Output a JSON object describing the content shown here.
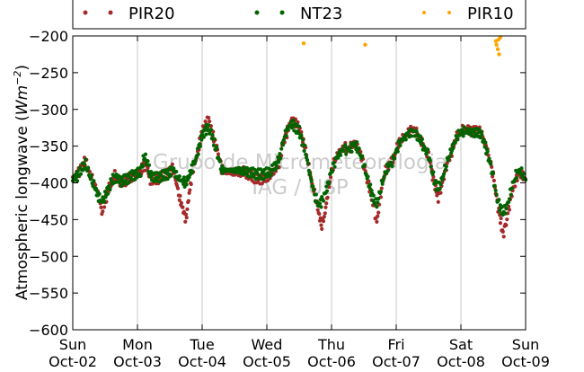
{
  "chart_data": {
    "type": "scatter",
    "title": "",
    "xlabel": "",
    "ylabel": "Atmospheric longwave (",
    "ylabel_unit": "Wm",
    "ylabel_unit_exp": "−2",
    "ylabel_close": ")",
    "ylim": [
      -600,
      -200
    ],
    "yticks": [
      -200,
      -250,
      -300,
      -350,
      -400,
      -450,
      -500,
      -550,
      -600
    ],
    "ytick_labels": [
      "−200",
      "−250",
      "−300",
      "−350",
      "−400",
      "−450",
      "−500",
      "−550",
      "−600"
    ],
    "xlim": [
      0,
      7
    ],
    "xtick_values": [
      0,
      1,
      2,
      3,
      4,
      5,
      6,
      7
    ],
    "xtick_labels": [
      {
        "day": "Sun",
        "date": "Oct-02"
      },
      {
        "day": "Mon",
        "date": "Oct-03"
      },
      {
        "day": "Tue",
        "date": "Oct-04"
      },
      {
        "day": "Wed",
        "date": "Oct-05"
      },
      {
        "day": "Thu",
        "date": "Oct-06"
      },
      {
        "day": "Fri",
        "date": "Oct-07"
      },
      {
        "day": "Sat",
        "date": "Oct-08"
      },
      {
        "day": "Sun",
        "date": "Oct-09"
      }
    ],
    "grid": "vertical",
    "legend_placement": "top",
    "watermark": [
      "Grupo de Micrometeorologia",
      "IAG / USP"
    ],
    "series": [
      {
        "name": "PIR20",
        "color": "#a52a2a",
        "points": [
          [
            0.0,
            -395
          ],
          [
            0.05,
            -390
          ],
          [
            0.1,
            -385
          ],
          [
            0.15,
            -375
          ],
          [
            0.2,
            -370
          ],
          [
            0.25,
            -385
          ],
          [
            0.3,
            -395
          ],
          [
            0.35,
            -405
          ],
          [
            0.4,
            -420
          ],
          [
            0.45,
            -440
          ],
          [
            0.5,
            -425
          ],
          [
            0.55,
            -410
          ],
          [
            0.6,
            -400
          ],
          [
            0.65,
            -390
          ],
          [
            0.7,
            -395
          ],
          [
            0.75,
            -400
          ],
          [
            0.85,
            -395
          ],
          [
            0.95,
            -390
          ],
          [
            1.05,
            -385
          ],
          [
            1.1,
            -375
          ],
          [
            1.15,
            -380
          ],
          [
            1.2,
            -395
          ],
          [
            1.3,
            -395
          ],
          [
            1.4,
            -390
          ],
          [
            1.5,
            -385
          ],
          [
            1.55,
            -380
          ],
          [
            1.6,
            -400
          ],
          [
            1.65,
            -420
          ],
          [
            1.7,
            -435
          ],
          [
            1.75,
            -450
          ],
          [
            1.8,
            -415
          ],
          [
            1.85,
            -385
          ],
          [
            1.9,
            -370
          ],
          [
            1.95,
            -350
          ],
          [
            2.0,
            -330
          ],
          [
            2.05,
            -320
          ],
          [
            2.1,
            -315
          ],
          [
            2.15,
            -330
          ],
          [
            2.2,
            -345
          ],
          [
            2.25,
            -360
          ],
          [
            2.3,
            -380
          ],
          [
            2.35,
            -385
          ],
          [
            2.45,
            -385
          ],
          [
            2.55,
            -385
          ],
          [
            2.65,
            -385
          ],
          [
            2.75,
            -390
          ],
          [
            2.85,
            -395
          ],
          [
            2.95,
            -395
          ],
          [
            3.05,
            -390
          ],
          [
            3.15,
            -380
          ],
          [
            3.2,
            -370
          ],
          [
            3.25,
            -345
          ],
          [
            3.3,
            -335
          ],
          [
            3.35,
            -320
          ],
          [
            3.4,
            -315
          ],
          [
            3.5,
            -325
          ],
          [
            3.6,
            -355
          ],
          [
            3.65,
            -380
          ],
          [
            3.7,
            -400
          ],
          [
            3.75,
            -420
          ],
          [
            3.8,
            -440
          ],
          [
            3.85,
            -460
          ],
          [
            3.9,
            -440
          ],
          [
            3.95,
            -410
          ],
          [
            4.0,
            -385
          ],
          [
            4.05,
            -370
          ],
          [
            4.1,
            -360
          ],
          [
            4.15,
            -355
          ],
          [
            4.2,
            -350
          ],
          [
            4.25,
            -355
          ],
          [
            4.3,
            -350
          ],
          [
            4.35,
            -345
          ],
          [
            4.4,
            -350
          ],
          [
            4.45,
            -360
          ],
          [
            4.5,
            -375
          ],
          [
            4.55,
            -395
          ],
          [
            4.6,
            -410
          ],
          [
            4.65,
            -430
          ],
          [
            4.7,
            -455
          ],
          [
            4.75,
            -420
          ],
          [
            4.8,
            -395
          ],
          [
            4.85,
            -380
          ],
          [
            4.9,
            -375
          ],
          [
            4.95,
            -370
          ],
          [
            5.0,
            -355
          ],
          [
            5.05,
            -345
          ],
          [
            5.1,
            -340
          ],
          [
            5.15,
            -335
          ],
          [
            5.2,
            -330
          ],
          [
            5.25,
            -328
          ],
          [
            5.3,
            -330
          ],
          [
            5.35,
            -335
          ],
          [
            5.4,
            -345
          ],
          [
            5.45,
            -355
          ],
          [
            5.5,
            -360
          ],
          [
            5.55,
            -385
          ],
          [
            5.6,
            -405
          ],
          [
            5.65,
            -420
          ],
          [
            5.7,
            -405
          ],
          [
            5.75,
            -385
          ],
          [
            5.8,
            -370
          ],
          [
            5.85,
            -360
          ],
          [
            5.9,
            -345
          ],
          [
            5.95,
            -335
          ],
          [
            6.0,
            -330
          ],
          [
            6.05,
            -328
          ],
          [
            6.1,
            -328
          ],
          [
            6.2,
            -330
          ],
          [
            6.3,
            -330
          ],
          [
            6.35,
            -340
          ],
          [
            6.4,
            -355
          ],
          [
            6.45,
            -370
          ],
          [
            6.5,
            -390
          ],
          [
            6.55,
            -420
          ],
          [
            6.6,
            -445
          ],
          [
            6.65,
            -470
          ],
          [
            6.7,
            -455
          ],
          [
            6.75,
            -430
          ],
          [
            6.8,
            -410
          ],
          [
            6.85,
            -395
          ],
          [
            6.9,
            -385
          ],
          [
            6.95,
            -390
          ],
          [
            7.0,
            -395
          ]
        ]
      },
      {
        "name": "NT23",
        "color": "#006400",
        "points": [
          [
            0.0,
            -395
          ],
          [
            0.05,
            -392
          ],
          [
            0.1,
            -388
          ],
          [
            0.15,
            -378
          ],
          [
            0.2,
            -374
          ],
          [
            0.25,
            -388
          ],
          [
            0.3,
            -398
          ],
          [
            0.35,
            -408
          ],
          [
            0.4,
            -420
          ],
          [
            0.45,
            -425
          ],
          [
            0.5,
            -418
          ],
          [
            0.55,
            -408
          ],
          [
            0.6,
            -398
          ],
          [
            0.65,
            -392
          ],
          [
            0.7,
            -395
          ],
          [
            0.75,
            -398
          ],
          [
            0.85,
            -394
          ],
          [
            0.95,
            -389
          ],
          [
            1.05,
            -385
          ],
          [
            1.1,
            -365
          ],
          [
            1.15,
            -370
          ],
          [
            1.2,
            -390
          ],
          [
            1.3,
            -393
          ],
          [
            1.4,
            -390
          ],
          [
            1.5,
            -387
          ],
          [
            1.55,
            -380
          ],
          [
            1.6,
            -390
          ],
          [
            1.65,
            -395
          ],
          [
            1.7,
            -398
          ],
          [
            1.75,
            -400
          ],
          [
            1.8,
            -390
          ],
          [
            1.85,
            -378
          ],
          [
            1.9,
            -368
          ],
          [
            1.95,
            -352
          ],
          [
            2.0,
            -335
          ],
          [
            2.05,
            -328
          ],
          [
            2.1,
            -325
          ],
          [
            2.15,
            -335
          ],
          [
            2.2,
            -350
          ],
          [
            2.25,
            -365
          ],
          [
            2.3,
            -382
          ],
          [
            2.35,
            -383
          ],
          [
            2.45,
            -383
          ],
          [
            2.55,
            -383
          ],
          [
            2.65,
            -384
          ],
          [
            2.75,
            -386
          ],
          [
            2.85,
            -388
          ],
          [
            2.95,
            -388
          ],
          [
            3.05,
            -385
          ],
          [
            3.15,
            -375
          ],
          [
            3.2,
            -365
          ],
          [
            3.25,
            -345
          ],
          [
            3.3,
            -330
          ],
          [
            3.35,
            -322
          ],
          [
            3.4,
            -320
          ],
          [
            3.5,
            -330
          ],
          [
            3.6,
            -358
          ],
          [
            3.65,
            -382
          ],
          [
            3.7,
            -402
          ],
          [
            3.75,
            -420
          ],
          [
            3.8,
            -430
          ],
          [
            3.85,
            -425
          ],
          [
            3.9,
            -415
          ],
          [
            3.95,
            -400
          ],
          [
            4.0,
            -383
          ],
          [
            4.05,
            -372
          ],
          [
            4.1,
            -362
          ],
          [
            4.15,
            -358
          ],
          [
            4.2,
            -352
          ],
          [
            4.25,
            -356
          ],
          [
            4.3,
            -352
          ],
          [
            4.35,
            -348
          ],
          [
            4.4,
            -352
          ],
          [
            4.45,
            -362
          ],
          [
            4.5,
            -376
          ],
          [
            4.55,
            -393
          ],
          [
            4.6,
            -408
          ],
          [
            4.65,
            -422
          ],
          [
            4.7,
            -430
          ],
          [
            4.75,
            -412
          ],
          [
            4.8,
            -395
          ],
          [
            4.85,
            -382
          ],
          [
            4.9,
            -376
          ],
          [
            4.95,
            -370
          ],
          [
            5.0,
            -357
          ],
          [
            5.05,
            -346
          ],
          [
            5.1,
            -341
          ],
          [
            5.15,
            -336
          ],
          [
            5.2,
            -332
          ],
          [
            5.25,
            -330
          ],
          [
            5.3,
            -332
          ],
          [
            5.35,
            -338
          ],
          [
            5.4,
            -346
          ],
          [
            5.45,
            -356
          ],
          [
            5.5,
            -362
          ],
          [
            5.55,
            -383
          ],
          [
            5.6,
            -400
          ],
          [
            5.65,
            -408
          ],
          [
            5.7,
            -398
          ],
          [
            5.75,
            -382
          ],
          [
            5.8,
            -368
          ],
          [
            5.85,
            -357
          ],
          [
            5.9,
            -345
          ],
          [
            5.95,
            -336
          ],
          [
            6.0,
            -332
          ],
          [
            6.05,
            -330
          ],
          [
            6.1,
            -330
          ],
          [
            6.2,
            -332
          ],
          [
            6.3,
            -332
          ],
          [
            6.35,
            -342
          ],
          [
            6.4,
            -357
          ],
          [
            6.45,
            -372
          ],
          [
            6.5,
            -392
          ],
          [
            6.55,
            -418
          ],
          [
            6.6,
            -432
          ],
          [
            6.65,
            -440
          ],
          [
            6.7,
            -435
          ],
          [
            6.75,
            -420
          ],
          [
            6.8,
            -402
          ],
          [
            6.85,
            -390
          ],
          [
            6.9,
            -382
          ],
          [
            6.95,
            -388
          ],
          [
            7.0,
            -396
          ]
        ]
      },
      {
        "name": "PIR10",
        "color": "#ffa500",
        "points": [
          [
            3.57,
            -210
          ],
          [
            4.52,
            -212
          ],
          [
            6.54,
            -207
          ],
          [
            6.55,
            -212
          ],
          [
            6.57,
            -218
          ],
          [
            6.58,
            -205
          ],
          [
            6.59,
            -225
          ],
          [
            6.61,
            -202
          ]
        ]
      }
    ]
  }
}
